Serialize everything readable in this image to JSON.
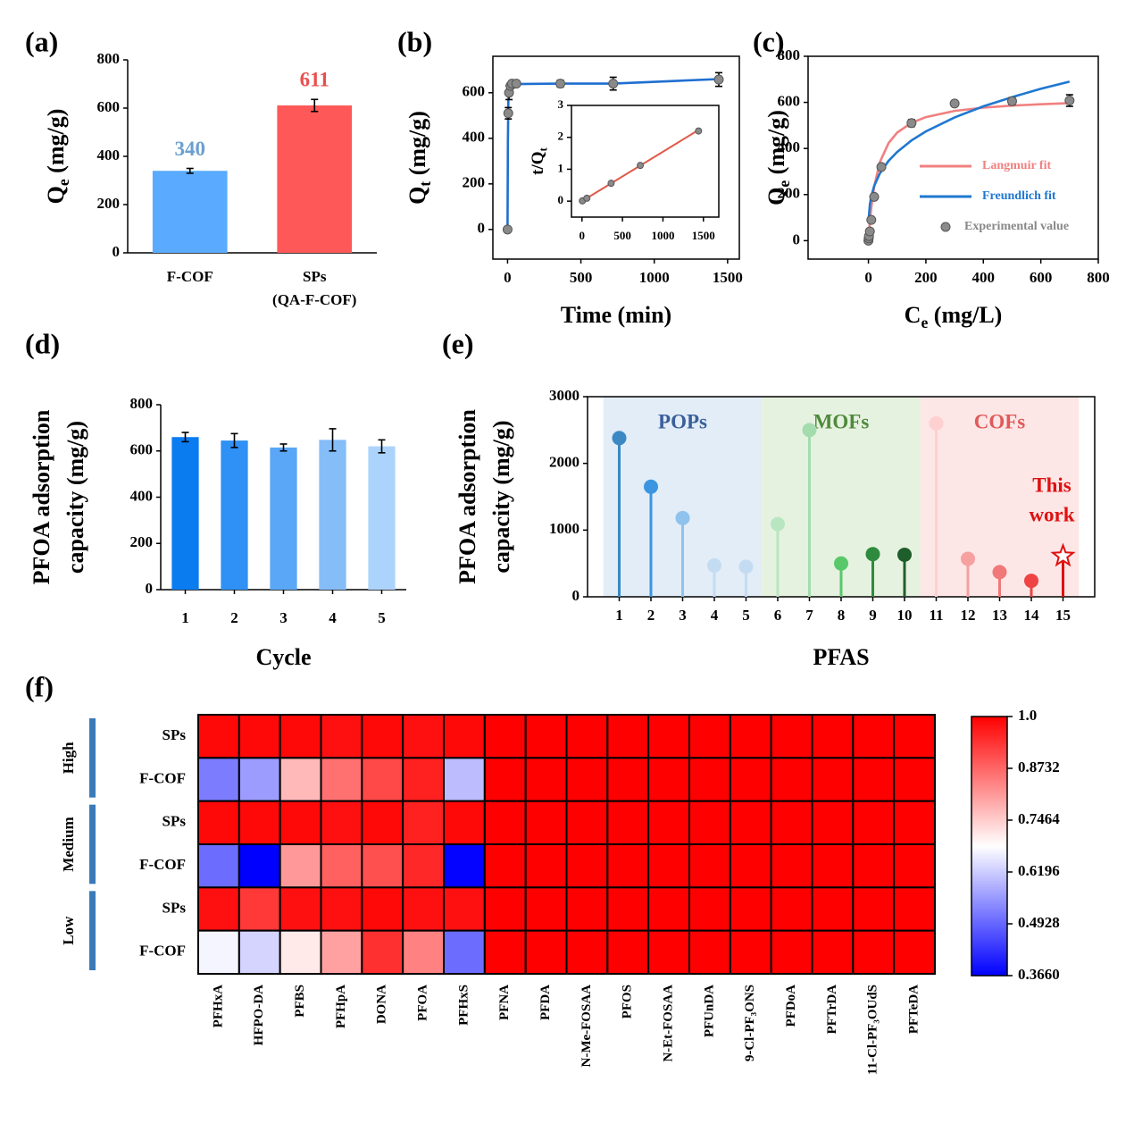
{
  "chart_data": [
    {
      "type": "bar",
      "panel": "(a)",
      "box": false,
      "ylabel": [
        [
          "Q",
          "e",
          " (mg/g)"
        ]
      ],
      "categories": [
        [
          "F-COF"
        ],
        [
          "SPs",
          "(QA-F-COF)"
        ]
      ],
      "values": [
        340,
        611
      ],
      "errors": [
        10,
        25
      ],
      "colors": [
        "#5aabff",
        "#ff5858"
      ],
      "label_colors": [
        "#6a9fcf",
        "#e8504e"
      ],
      "ylim": [
        0,
        800
      ],
      "yticks": [
        0,
        200,
        400,
        600,
        800
      ]
    },
    {
      "type": "scatter",
      "panel": "(b)",
      "box": true,
      "ylabel": [
        [
          "Q",
          "t",
          " (mg/g)"
        ]
      ],
      "xlabel": [
        [
          "Time (min)"
        ]
      ],
      "x": [
        0,
        5,
        10,
        20,
        30,
        60,
        360,
        720,
        1440
      ],
      "values": [
        0,
        510,
        600,
        630,
        640,
        640,
        640,
        640,
        658
      ],
      "errors": [
        0,
        25,
        30,
        12,
        10,
        8,
        15,
        28,
        30
      ],
      "marker_color": "#8a8a8a",
      "fits": [
        {
          "color": "#1f6fd0",
          "x": [
            0,
            2,
            5,
            10,
            20,
            60,
            360,
            720,
            1440
          ],
          "values": [
            0,
            380,
            560,
            610,
            630,
            638,
            640,
            640,
            660
          ]
        }
      ],
      "xlim": [
        -100,
        1580
      ],
      "xticks": [
        0,
        500,
        1000,
        1500
      ],
      "ylim": [
        -130,
        760
      ],
      "yticks": [
        0,
        200,
        400,
        600
      ],
      "inset": {
        "type": "scatter",
        "box": true,
        "ylabel": [
          [
            "t/Q",
            "t"
          ]
        ],
        "x": [
          5,
          60,
          360,
          720,
          1440
        ],
        "values": [
          0.01,
          0.09,
          0.56,
          1.12,
          2.2
        ],
        "marker_color": "#8a8a8a",
        "fits": [
          {
            "color": "#e05a4a",
            "x": [
              0,
              1440
            ],
            "values": [
              0,
              2.23
            ]
          }
        ],
        "xlim": [
          -130,
          1690
        ],
        "xticks": [
          0,
          500,
          1000,
          1500
        ],
        "ylim": [
          -0.5,
          3
        ],
        "yticks": [
          0,
          1,
          2,
          3
        ]
      }
    },
    {
      "type": "scatter",
      "panel": "(c)",
      "box": true,
      "ylabel": [
        [
          "Q",
          "e",
          " (mg/g)"
        ]
      ],
      "xlabel": [
        [
          "C",
          "e",
          " (mg/L)"
        ]
      ],
      "x": [
        0,
        1,
        2,
        5,
        10,
        20,
        45,
        150,
        300,
        500,
        700
      ],
      "values": [
        0,
        10,
        20,
        40,
        90,
        190,
        320,
        510,
        595,
        605,
        608
      ],
      "errors": [
        0,
        0,
        0,
        0,
        0,
        0,
        10,
        15,
        12,
        15,
        25
      ],
      "marker_color": "#8a8a8a",
      "point_name": "Experimental value",
      "fits": [
        {
          "name": "Langmuir fit",
          "color": "#f08080",
          "x": [
            0,
            5,
            10,
            20,
            40,
            70,
            100,
            150,
            200,
            300,
            400,
            500,
            600,
            700
          ],
          "values": [
            0,
            82,
            144,
            234,
            341,
            423,
            469,
            511,
            536,
            563,
            577,
            586,
            592,
            597
          ]
        },
        {
          "name": "Freundlich fit",
          "color": "#1f77d0",
          "x": [
            1,
            5,
            10,
            20,
            40,
            70,
            100,
            150,
            200,
            300,
            400,
            500,
            600,
            700
          ],
          "values": [
            97,
            157,
            193,
            237,
            292,
            346,
            385,
            435,
            474,
            535,
            583,
            623,
            659,
            690
          ]
        }
      ],
      "xlim": [
        -210,
        800
      ],
      "xticks": [
        0,
        200,
        400,
        600,
        800
      ],
      "ylim": [
        -80,
        800
      ],
      "yticks": [
        0,
        200,
        400,
        600,
        800
      ]
    },
    {
      "type": "bar",
      "panel": "(d)",
      "box": false,
      "ylabel": [
        [
          "PFOA adsorption"
        ],
        [
          "capacity (mg/g)"
        ]
      ],
      "xlabel": [
        [
          "Cycle"
        ]
      ],
      "categories": [
        "1",
        "2",
        "3",
        "4",
        "5"
      ],
      "values": [
        660,
        645,
        615,
        648,
        620
      ],
      "errors": [
        20,
        30,
        15,
        48,
        28
      ],
      "colors": [
        "#0a7cf0",
        "#2f90f5",
        "#5aa7f7",
        "#85bdf9",
        "#acd3fb"
      ],
      "ylim": [
        0,
        800
      ],
      "yticks": [
        0,
        200,
        400,
        600,
        800
      ]
    },
    {
      "type": "lollipop",
      "panel": "(e)",
      "box": true,
      "ylabel": [
        [
          "PFOA adsorption"
        ],
        [
          "capacity (mg/g)"
        ]
      ],
      "xlabel": [
        [
          "PFAS"
        ]
      ],
      "groups": [
        {
          "name": "POPs",
          "background": "#e2edf7",
          "text_color": "#3a5f9a",
          "x": [
            1,
            2,
            3,
            4,
            5
          ],
          "values": [
            2380,
            1650,
            1180,
            470,
            450
          ],
          "colors": [
            "#3b88c4",
            "#3b95e0",
            "#8fc2ec",
            "#c4dcf2",
            "#c4dcf2"
          ]
        },
        {
          "name": "MOFs",
          "background": "#e6f2e0",
          "text_color": "#4e8a3c",
          "x": [
            6,
            7,
            8,
            9,
            10
          ],
          "values": [
            1090,
            2500,
            500,
            640,
            630
          ],
          "colors": [
            "#b8e6c0",
            "#a4dcae",
            "#59c86a",
            "#2e8b3e",
            "#1e5e2a"
          ]
        },
        {
          "name": "COFs",
          "background": "#fde6e6",
          "text_color": "#e05a5a",
          "x": [
            11,
            12,
            13,
            14,
            15
          ],
          "values": [
            2600,
            570,
            370,
            240,
            611
          ],
          "colors": [
            "#ffd0d0",
            "#f6a0a0",
            "#f07878",
            "#ee4444",
            "#e01010"
          ],
          "markers": [
            "circle",
            "circle",
            "circle",
            "circle",
            "star"
          ]
        }
      ],
      "annotation": [
        "This",
        "work"
      ],
      "annotation_color": "#e01010",
      "xlim": [
        0,
        16
      ],
      "xticks": [
        1,
        2,
        3,
        4,
        5,
        6,
        7,
        8,
        9,
        10,
        11,
        12,
        13,
        14,
        15
      ],
      "ylim": [
        0,
        3000
      ],
      "yticks": [
        0,
        1000,
        2000,
        3000
      ]
    },
    {
      "type": "heatmap",
      "panel": "(f)",
      "group_color": "#3a7ab8",
      "columns": [
        "PFHxA",
        "HFPO-DA",
        "PFBS",
        "PFHpA",
        "DONA",
        "PFOA",
        "PFHxS",
        "PFNA",
        "PFDA",
        "N-Me-FOSAA",
        "PFOS",
        "N-Et-FOSAA",
        "PFUnDA",
        "9-Cl-PF₃ONS",
        "PFDoA",
        "PFTrDA",
        "11-Cl-PF₃OUdS",
        "PFTeDA"
      ],
      "groups": [
        {
          "name": "High",
          "rows": [
            "SPs",
            "F-COF"
          ],
          "values": [
            [
              0.99,
              0.99,
              0.99,
              0.98,
              0.99,
              0.98,
              0.99,
              1,
              1,
              1,
              1,
              1,
              1,
              1,
              1,
              1,
              1,
              1
            ],
            [
              0.52,
              0.56,
              0.77,
              0.86,
              0.91,
              0.96,
              0.6,
              1,
              1,
              1,
              1,
              1,
              1,
              1,
              1,
              1,
              1,
              1
            ]
          ]
        },
        {
          "name": "Medium",
          "rows": [
            "SPs",
            "F-COF"
          ],
          "values": [
            [
              0.99,
              0.99,
              0.99,
              0.98,
              0.99,
              0.96,
              0.99,
              1,
              1,
              1,
              1,
              1,
              1,
              1,
              1,
              1,
              1,
              1
            ],
            [
              0.5,
              0.366,
              0.81,
              0.88,
              0.9,
              0.95,
              0.37,
              1,
              1,
              1,
              1,
              1,
              1,
              1,
              1,
              1,
              1,
              1
            ]
          ]
        },
        {
          "name": "Low",
          "rows": [
            "SPs",
            "F-COF"
          ],
          "values": [
            [
              0.98,
              0.93,
              0.98,
              0.98,
              0.99,
              0.98,
              0.98,
              1,
              1,
              1,
              1,
              1,
              1,
              1,
              1,
              1,
              1,
              1
            ],
            [
              0.67,
              0.63,
              0.71,
              0.8,
              0.94,
              0.84,
              0.5,
              1,
              1,
              1,
              1,
              1,
              1,
              1,
              1,
              1,
              1,
              1
            ]
          ]
        }
      ],
      "zlim": [
        0.366,
        1
      ],
      "zticks": [
        {
          "value": 1,
          "label": "1.0"
        },
        0.8732,
        0.7464,
        0.6196,
        0.4928,
        {
          "value": 0.366,
          "label": "0.3660"
        }
      ],
      "colors": [
        "#0000ff",
        "#ffffff",
        "#ff0000"
      ]
    }
  ]
}
